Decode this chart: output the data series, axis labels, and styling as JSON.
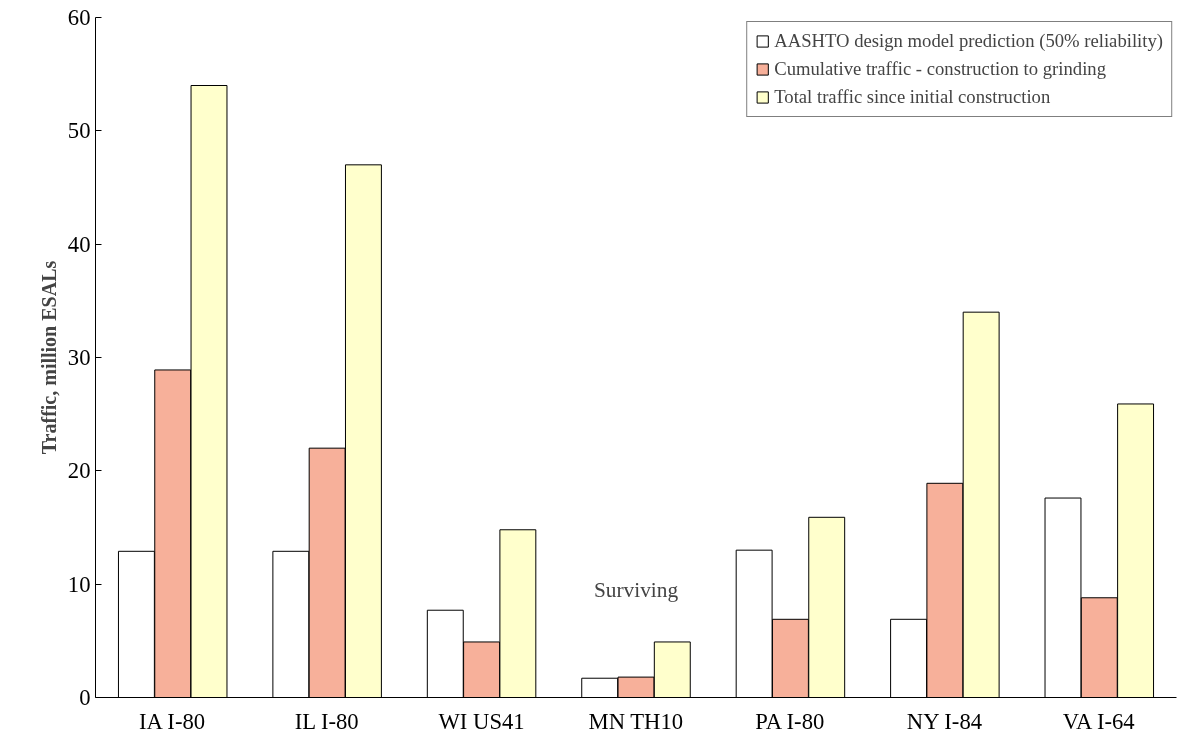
{
  "chart_data": {
    "type": "bar",
    "ylabel": "Traffic, million ESALs",
    "categories": [
      "IA I-80",
      "IL I-80",
      "WI US41",
      "MN TH10",
      "PA I-80",
      "NY I-84",
      "VA I-64"
    ],
    "series": [
      {
        "name": "AASHTO design model prediction (50% reliability)",
        "color": "#ffffff",
        "values": [
          12.9,
          12.9,
          7.7,
          1.7,
          13.0,
          6.9,
          17.6
        ]
      },
      {
        "name": "Cumulative traffic - construction to grinding",
        "color": "#f7b09a",
        "values": [
          28.9,
          22.0,
          4.9,
          1.8,
          6.9,
          18.9,
          8.8
        ]
      },
      {
        "name": "Total traffic since initial construction",
        "color": "#ffffcc",
        "values": [
          54.0,
          47.0,
          14.8,
          4.9,
          15.9,
          34.0,
          25.9
        ]
      }
    ],
    "annotations": [
      "Surviving"
    ],
    "ylim": [
      0,
      60
    ],
    "yticks": [
      0,
      10,
      20,
      30,
      40,
      50,
      60
    ],
    "grid": false,
    "legend": "top right"
  }
}
